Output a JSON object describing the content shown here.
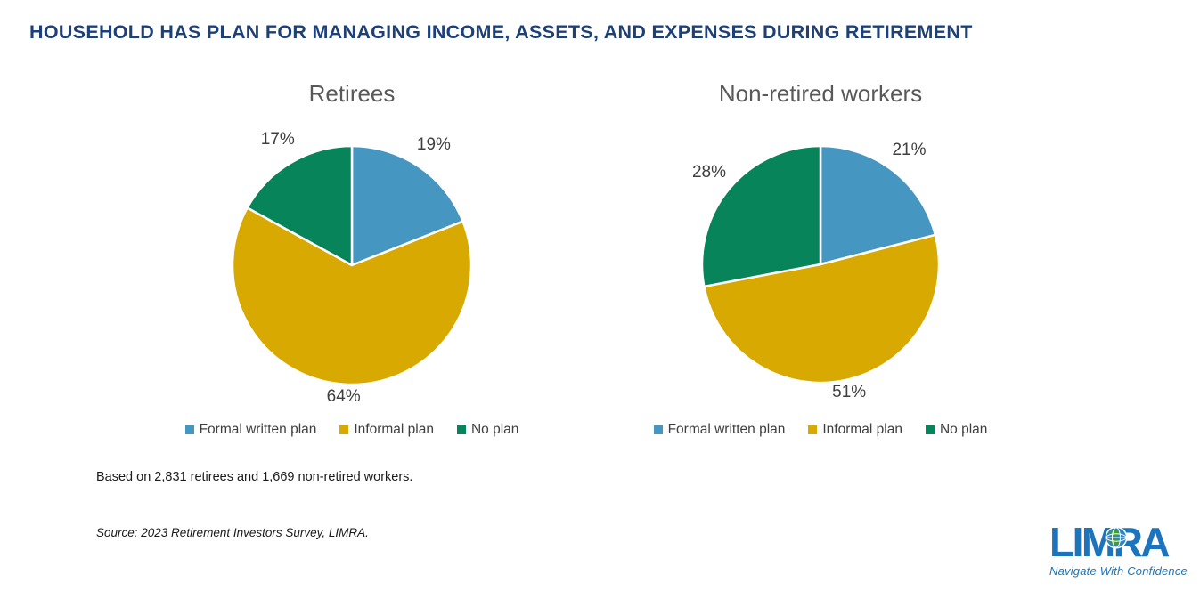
{
  "page": {
    "title": "HOUSEHOLD HAS PLAN FOR MANAGING INCOME, ASSETS, AND EXPENSES DURING RETIREMENT",
    "footnote": "Based on 2,831 retirees and 1,669 non-retired workers.",
    "source": "Source: 2023 Retirement Investors Survey, LIMRA."
  },
  "logo": {
    "wordmark": "LIMRA",
    "tagline": "Navigate With Confidence",
    "icon": "globe-icon"
  },
  "colors": {
    "title_navy": "#1d4077",
    "chart_title_gray": "#595959",
    "label_gray": "#3f3f3f",
    "logo_blue": "#1c75bc",
    "formal_written_plan": "#4596c1",
    "informal_plan": "#d8a900",
    "no_plan": "#07845a"
  },
  "chart_data": [
    {
      "type": "pie",
      "title": "Retirees",
      "labels": [
        "Formal written plan",
        "Informal plan",
        "No plan"
      ],
      "values": [
        19,
        64,
        17
      ],
      "data_labels": [
        "19%",
        "64%",
        "17%"
      ],
      "colors": [
        "#4596c1",
        "#d8a900",
        "#07845a"
      ],
      "start_angle_deg": 0,
      "direction": "clockwise",
      "labels_position": "outside",
      "legend_position": "bottom"
    },
    {
      "type": "pie",
      "title": "Non-retired workers",
      "labels": [
        "Formal written plan",
        "Informal plan",
        "No plan"
      ],
      "values": [
        21,
        51,
        28
      ],
      "data_labels": [
        "21%",
        "51%",
        "28%"
      ],
      "colors": [
        "#4596c1",
        "#d8a900",
        "#07845a"
      ],
      "start_angle_deg": 0,
      "direction": "clockwise",
      "labels_position": "outside",
      "legend_position": "bottom"
    }
  ]
}
